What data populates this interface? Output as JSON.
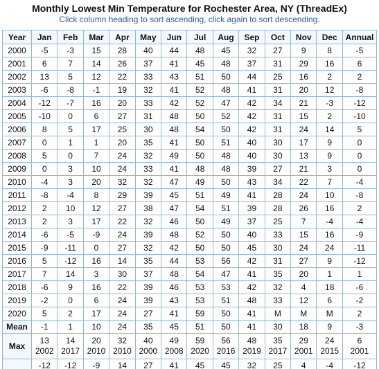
{
  "header": {
    "title": "Monthly Lowest Min Temperature for Rochester Area, NY (ThreadEx)",
    "subtitle": "Click column heading to sort ascending, click again to sort descending."
  },
  "table": {
    "columns": [
      "Year",
      "Jan",
      "Feb",
      "Mar",
      "Apr",
      "May",
      "Jun",
      "Jul",
      "Aug",
      "Sep",
      "Oct",
      "Nov",
      "Dec",
      "Annual"
    ],
    "rows": [
      [
        2000,
        -5,
        -3,
        15,
        28,
        40,
        44,
        48,
        45,
        32,
        27,
        9,
        8,
        -5
      ],
      [
        2001,
        6,
        7,
        14,
        26,
        37,
        41,
        45,
        48,
        37,
        31,
        29,
        16,
        6
      ],
      [
        2002,
        13,
        5,
        12,
        22,
        33,
        43,
        51,
        50,
        44,
        25,
        16,
        2,
        2
      ],
      [
        2003,
        -6,
        -8,
        -1,
        19,
        32,
        41,
        52,
        48,
        41,
        31,
        20,
        12,
        -8
      ],
      [
        2004,
        -12,
        -7,
        16,
        20,
        33,
        42,
        52,
        47,
        42,
        34,
        21,
        -3,
        -12
      ],
      [
        2005,
        -10,
        0,
        6,
        27,
        31,
        48,
        50,
        52,
        42,
        31,
        15,
        2,
        -10
      ],
      [
        2006,
        8,
        5,
        17,
        25,
        30,
        48,
        54,
        50,
        42,
        31,
        24,
        14,
        5
      ],
      [
        2007,
        0,
        1,
        1,
        20,
        35,
        41,
        50,
        51,
        40,
        30,
        17,
        9,
        0
      ],
      [
        2008,
        5,
        0,
        7,
        24,
        32,
        49,
        50,
        48,
        40,
        30,
        13,
        9,
        0
      ],
      [
        2009,
        0,
        3,
        10,
        24,
        33,
        41,
        48,
        48,
        39,
        27,
        21,
        3,
        0
      ],
      [
        2010,
        -4,
        3,
        20,
        32,
        32,
        47,
        49,
        50,
        43,
        34,
        22,
        7,
        -4
      ],
      [
        2011,
        -8,
        -4,
        8,
        29,
        39,
        45,
        51,
        49,
        41,
        28,
        24,
        10,
        -8
      ],
      [
        2012,
        2,
        10,
        12,
        27,
        38,
        47,
        54,
        51,
        39,
        28,
        26,
        16,
        2
      ],
      [
        2013,
        2,
        3,
        17,
        22,
        32,
        46,
        50,
        49,
        37,
        25,
        7,
        -4,
        -4
      ],
      [
        2014,
        -6,
        -5,
        -9,
        24,
        39,
        48,
        52,
        50,
        40,
        33,
        15,
        16,
        -9
      ],
      [
        2015,
        -9,
        -11,
        0,
        27,
        32,
        42,
        50,
        50,
        45,
        30,
        24,
        24,
        -11
      ],
      [
        2016,
        5,
        -12,
        16,
        14,
        35,
        44,
        53,
        56,
        42,
        31,
        27,
        9,
        -12
      ],
      [
        2017,
        7,
        14,
        3,
        30,
        37,
        48,
        54,
        47,
        41,
        35,
        20,
        1,
        1
      ],
      [
        2018,
        -6,
        9,
        16,
        22,
        39,
        46,
        53,
        53,
        42,
        32,
        4,
        18,
        -6
      ],
      [
        2019,
        -2,
        0,
        6,
        24,
        39,
        43,
        53,
        51,
        48,
        33,
        12,
        6,
        -2
      ],
      [
        2020,
        5,
        2,
        17,
        24,
        27,
        41,
        59,
        50,
        41,
        "M",
        "M",
        "M",
        2
      ]
    ],
    "mean": {
      "label": "Mean",
      "values": [
        -1,
        1,
        10,
        24,
        35,
        45,
        51,
        50,
        41,
        30,
        18,
        9,
        -3
      ]
    },
    "max": {
      "label": "Max",
      "values": [
        [
          13,
          2002
        ],
        [
          14,
          2017
        ],
        [
          20,
          2010
        ],
        [
          32,
          2010
        ],
        [
          40,
          2000
        ],
        [
          49,
          2008
        ],
        [
          59,
          2020
        ],
        [
          56,
          2016
        ],
        [
          48,
          2019
        ],
        [
          35,
          2017
        ],
        [
          29,
          2001
        ],
        [
          24,
          2015
        ],
        [
          6,
          2001
        ]
      ]
    },
    "min_partial": [
      -12,
      -12,
      -9,
      14,
      27,
      41,
      45,
      45,
      32,
      25,
      4,
      -4,
      -12
    ]
  }
}
